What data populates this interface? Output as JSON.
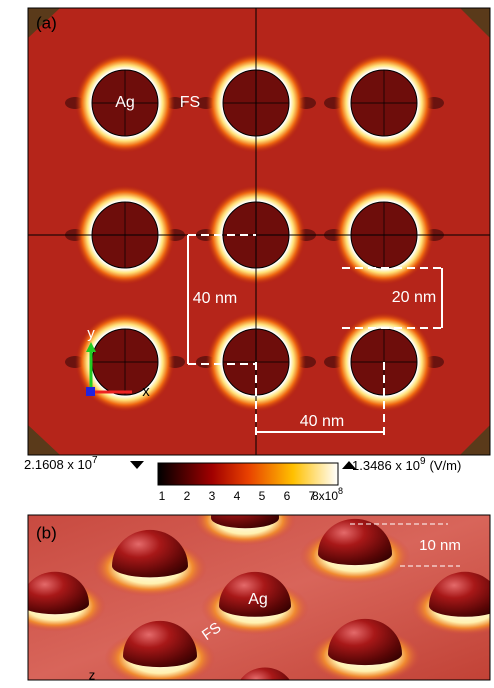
{
  "panel_a": {
    "label": "(a)",
    "material": "Ag",
    "substrate": "FS",
    "dimensions": {
      "period_vertical": "40 nm",
      "diameter": "20 nm",
      "period_horizontal": "40 nm"
    },
    "axes": {
      "y": "y",
      "x": "x"
    }
  },
  "colorbar": {
    "min_label": {
      "base": "2.1608 x 10",
      "exp": "7"
    },
    "max_label": {
      "base": "1.3486 x 10",
      "exp": "9",
      "unit": "(V/m)"
    },
    "ticks": [
      "1",
      "2",
      "3",
      "4",
      "5",
      "6",
      "7"
    ],
    "last_tick": {
      "base": "8x10",
      "exp": "8"
    }
  },
  "panel_b": {
    "label": "(b)",
    "height": "10 nm",
    "material": "Ag",
    "substrate": "FS",
    "axis": "z"
  }
}
